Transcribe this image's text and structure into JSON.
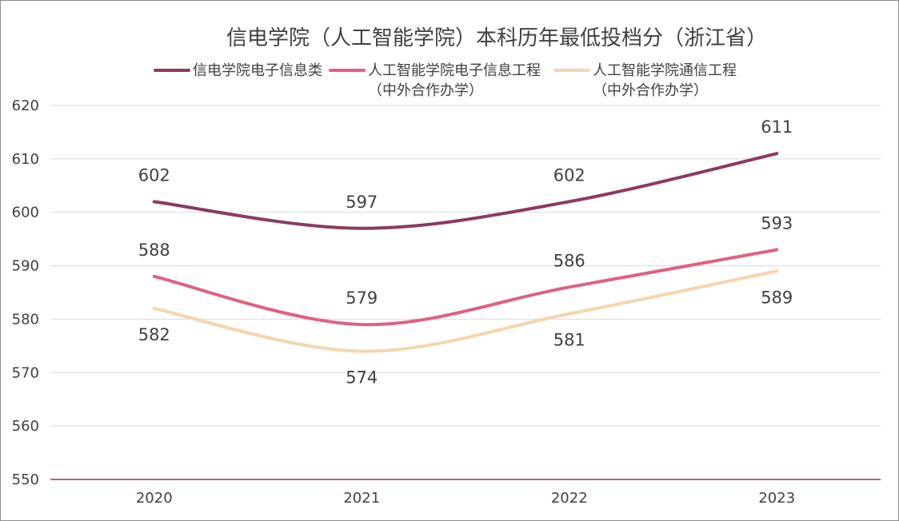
{
  "chart_data": {
    "type": "line",
    "title": "信电学院（人工智能学院）本科历年最低投档分（浙江省）",
    "xlabel": "",
    "ylabel": "",
    "categories": [
      "2020",
      "2021",
      "2022",
      "2023"
    ],
    "ylim": [
      550,
      620
    ],
    "yticks": [
      550,
      560,
      570,
      580,
      590,
      600,
      610,
      620
    ],
    "grid": true,
    "smooth": true,
    "legend_position": "top",
    "series": [
      {
        "name": "信电学院电子信息类",
        "name_lines": [
          "信电学院电子信息类"
        ],
        "color": "#8B3A62",
        "values": [
          602,
          597,
          602,
          611
        ],
        "label_positions": [
          "above",
          "above",
          "above",
          "above"
        ]
      },
      {
        "name": "人工智能学院电子信息工程（中外合作办学）",
        "name_lines": [
          "人工智能学院电子信息工程",
          "（中外合作办学）"
        ],
        "color": "#E0607E",
        "values": [
          588,
          579,
          586,
          593
        ],
        "label_positions": [
          "above",
          "above",
          "above",
          "above"
        ]
      },
      {
        "name": "人工智能学院通信工程（中外合作办学）",
        "name_lines": [
          "人工智能学院通信工程",
          "（中外合作办学）"
        ],
        "color": "#F5D5AE",
        "values": [
          582,
          574,
          581,
          589
        ],
        "label_positions": [
          "below",
          "below",
          "below",
          "below"
        ]
      }
    ],
    "grid_color": "#d9d9d9",
    "baseline_color": "#8B3A62"
  }
}
